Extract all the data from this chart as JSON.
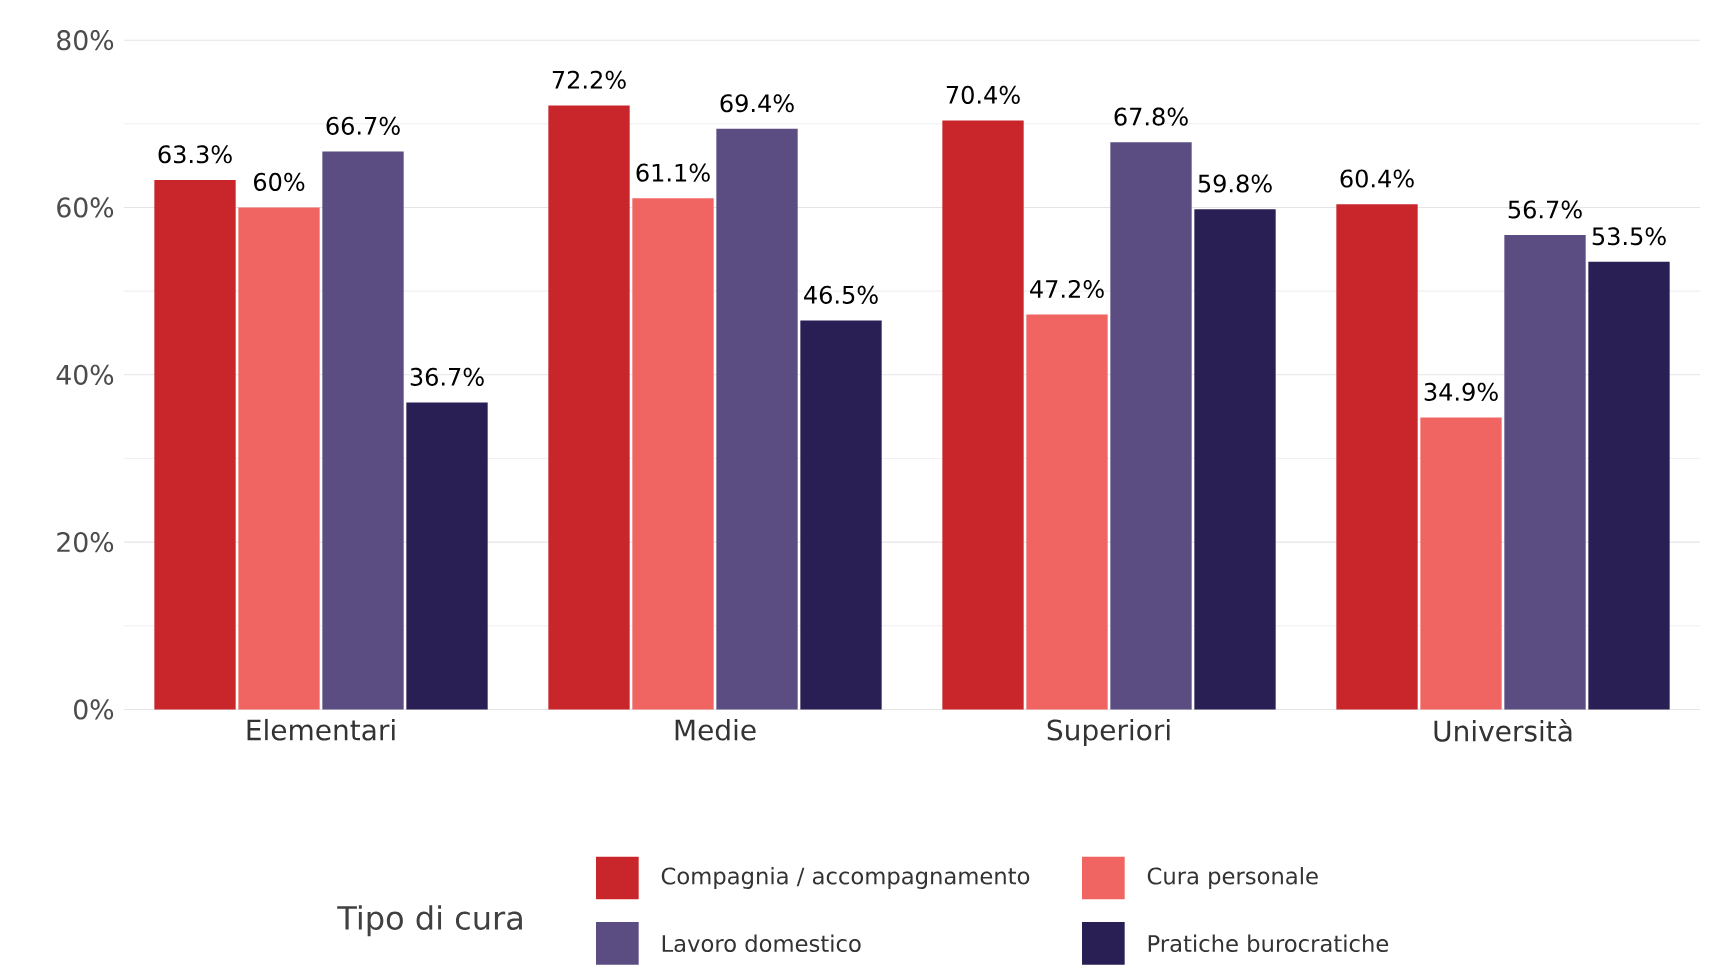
{
  "chart_data": {
    "type": "bar",
    "legend_title": "Tipo di cura",
    "categories": [
      "Elementari",
      "Medie",
      "Superiori",
      "Università"
    ],
    "series": [
      {
        "name": "Compagnia / accompagnamento",
        "color": "#c9262c",
        "values": [
          63.3,
          72.2,
          70.4,
          60.4
        ],
        "value_labels": [
          "63.3%",
          "72.2%",
          "70.4%",
          "60.4%"
        ]
      },
      {
        "name": "Cura personale",
        "color": "#f06461",
        "values": [
          60,
          61.1,
          47.2,
          34.9
        ],
        "value_labels": [
          "60%",
          "61.1%",
          "47.2%",
          "34.9%"
        ]
      },
      {
        "name": "Lavoro domestico",
        "color": "#5b4c82",
        "values": [
          66.7,
          69.4,
          67.8,
          56.7
        ],
        "value_labels": [
          "66.7%",
          "69.4%",
          "67.8%",
          "56.7%"
        ]
      },
      {
        "name": "Pratiche burocratiche",
        "color": "#2a1f55",
        "values": [
          36.7,
          46.5,
          59.8,
          53.5
        ],
        "value_labels": [
          "36.7%",
          "46.5%",
          "59.8%",
          "53.5%"
        ]
      }
    ],
    "ylim": [
      0,
      80
    ],
    "yticks": [
      {
        "value": 0,
        "label": "0%"
      },
      {
        "value": 20,
        "label": "20%"
      },
      {
        "value": 40,
        "label": "40%"
      },
      {
        "value": 60,
        "label": "60%"
      },
      {
        "value": 80,
        "label": "80%"
      }
    ],
    "grid": "y",
    "legend": "bottom"
  }
}
